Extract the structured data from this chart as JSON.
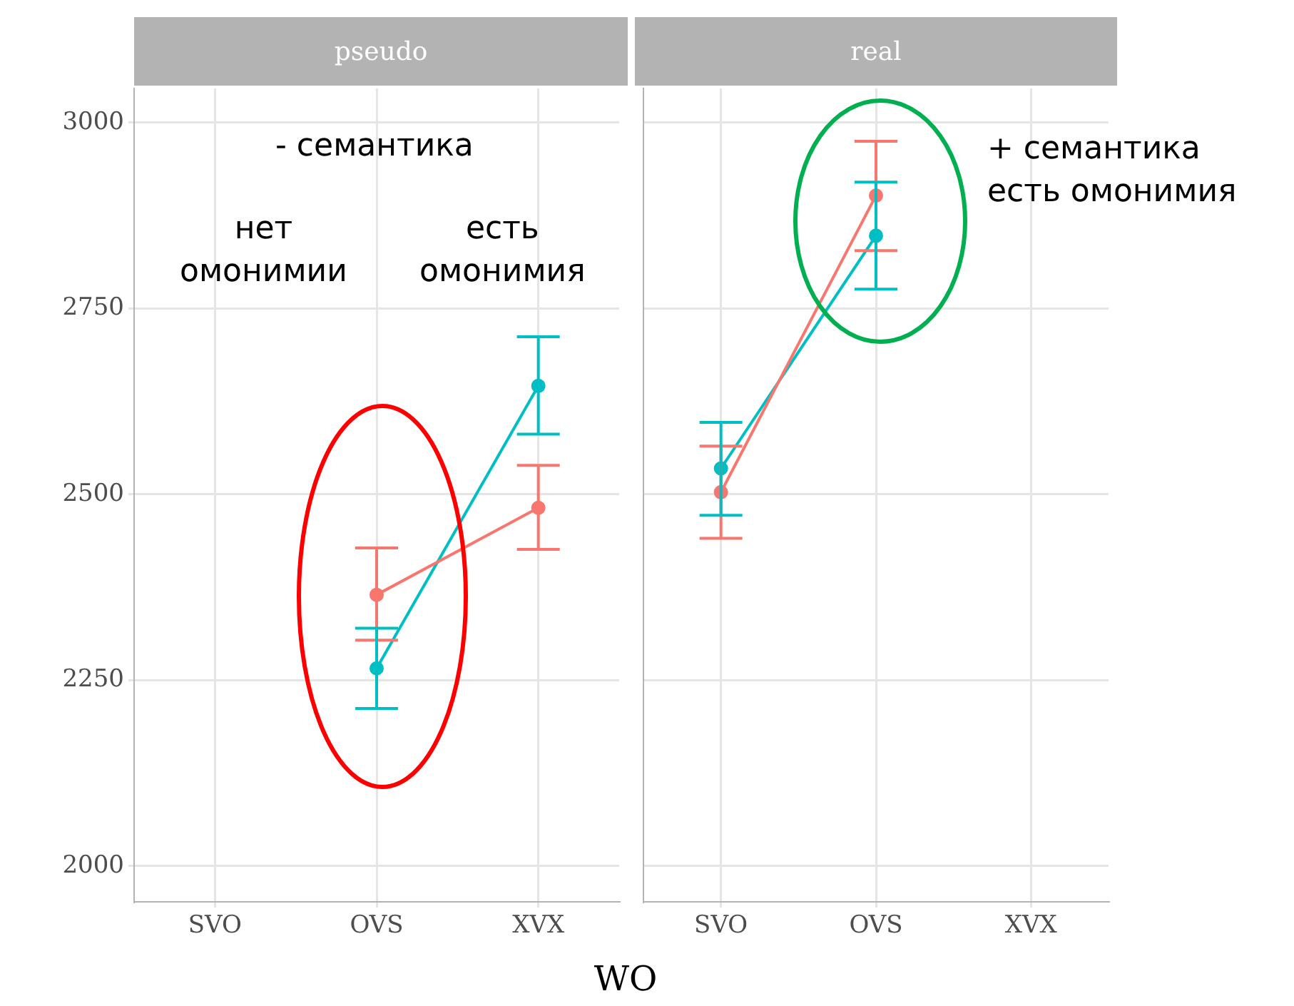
{
  "chart_data": [
    {
      "type": "line",
      "title": "pseudo",
      "xlabel": "WO",
      "categories": [
        "SVO",
        "OVS",
        "XVX"
      ],
      "ylim": [
        1952,
        3046
      ],
      "yticks": [
        2000,
        2250,
        2500,
        2750,
        3000
      ],
      "grid": true,
      "legend": false,
      "marker": "circle",
      "line_style": "solid",
      "series": [
        {
          "color": "#f8766d",
          "values": [
            null,
            2365,
            2482
          ],
          "errors": [
            null,
            [
              2304,
              2428
            ],
            [
              2426,
              2539
            ]
          ]
        },
        {
          "color": "#00bfc4",
          "values": [
            null,
            2266,
            2646
          ],
          "errors": [
            null,
            [
              2212,
              2320
            ],
            [
              2581,
              2712
            ]
          ]
        }
      ],
      "annotations": [
        "- семантика",
        "нет\nомонимии",
        "есть\nомонимия"
      ]
    },
    {
      "type": "line",
      "title": "real",
      "categories": [
        "SVO",
        "OVS",
        "XVX"
      ],
      "ylim": [
        1952,
        3046
      ],
      "yticks": [
        2000,
        2250,
        2500,
        2750,
        3000
      ],
      "grid": true,
      "legend": false,
      "marker": "circle",
      "line_style": "solid",
      "tick_labels": "x",
      "series": [
        {
          "color": "#f8766d",
          "values": [
            2503,
            2902,
            null
          ],
          "errors": [
            [
              2441,
              2565
            ],
            [
              2828,
              2975
            ],
            null
          ]
        },
        {
          "color": "#00bfc4",
          "values": [
            2535,
            2848,
            null
          ],
          "errors": [
            [
              2472,
              2597
            ],
            [
              2776,
              2920
            ],
            null
          ]
        }
      ],
      "annotations": [
        "+ семантика\nесть омонимия"
      ]
    }
  ]
}
